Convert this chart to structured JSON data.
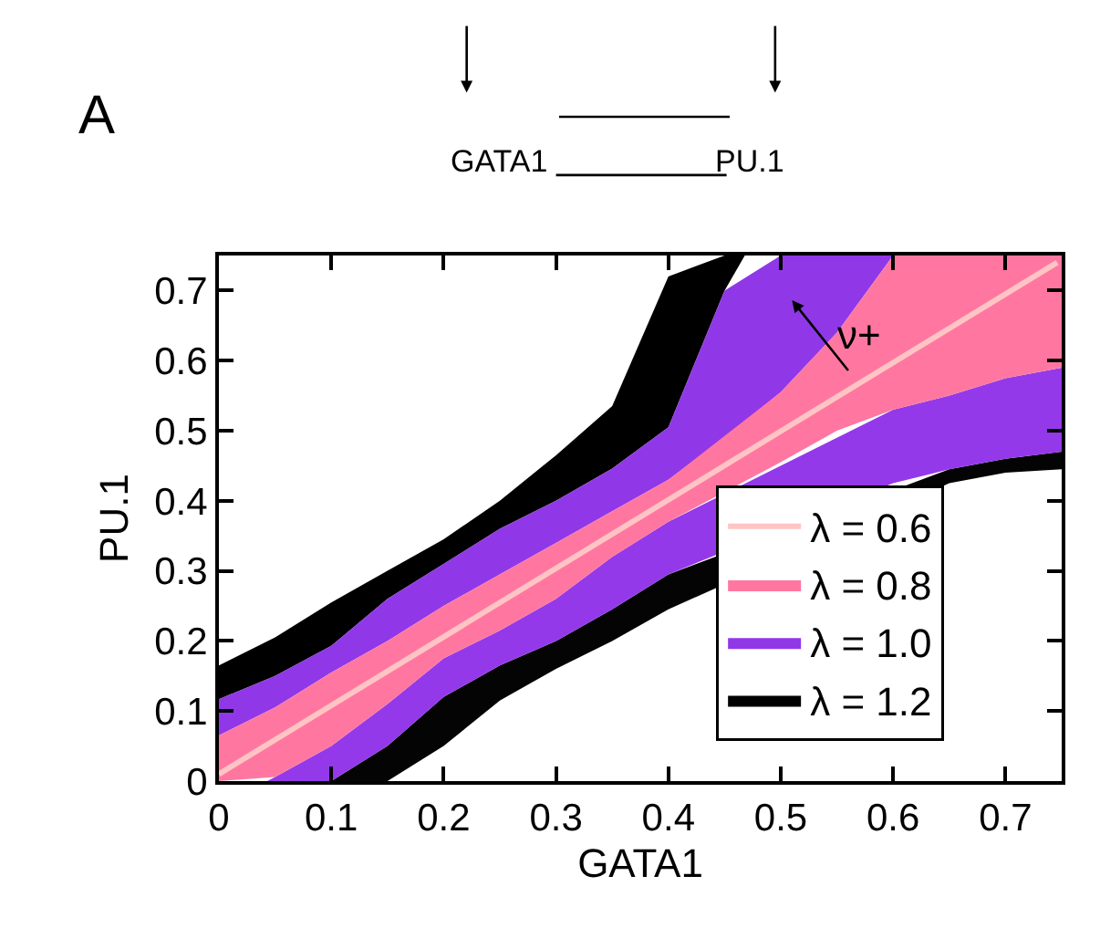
{
  "chart_data": {
    "type": "area",
    "xlabel": "GATA1",
    "ylabel": "PU.1",
    "xlim": [
      0,
      0.75
    ],
    "ylim": [
      0,
      0.75
    ],
    "xticks": [
      0,
      0.1,
      0.2,
      0.3,
      0.4,
      0.5,
      0.6,
      0.7
    ],
    "yticks": [
      0,
      0.1,
      0.2,
      0.3,
      0.4,
      0.5,
      0.6,
      0.7
    ],
    "legend": "bottom right",
    "series": [
      {
        "name": "λ = 1.2",
        "color": "#000000",
        "x": [
          0,
          0.05,
          0.1,
          0.15,
          0.2,
          0.25,
          0.3,
          0.35,
          0.4,
          0.45,
          0.468
        ],
        "values": [
          null,
          null,
          null,
          null,
          null,
          null,
          null,
          null,
          null,
          null,
          null
        ],
        "lower": [
          0.117,
          0.15,
          0.193,
          0.26,
          0.31,
          0.36,
          0.4,
          0.446,
          0.505,
          0.7,
          0.75
        ],
        "upper": [
          0.165,
          0.205,
          0.255,
          0.3,
          0.345,
          0.4,
          0.465,
          0.535,
          0.72,
          0.75,
          0.75
        ]
      },
      {
        "color": "#040404",
        "x": [
          0.1,
          0.15,
          0.2,
          0.25,
          0.3,
          0.35,
          0.4,
          0.65,
          0.7,
          0.75
        ],
        "values": [
          null,
          null,
          null,
          null,
          null,
          null,
          null,
          null,
          null,
          null
        ],
        "lower": [
          0,
          0,
          0.05,
          0.115,
          0.16,
          0.2,
          0.245,
          0.425,
          0.44,
          0.445
        ],
        "upper": [
          0,
          0.05,
          0.12,
          0.165,
          0.2,
          0.245,
          0.295,
          0.445,
          0.46,
          0.47
        ]
      },
      {
        "name": "λ = 1.0",
        "color": "#9038e8",
        "x": [
          0,
          0.05,
          0.1,
          0.15,
          0.2,
          0.25,
          0.3,
          0.35,
          0.4,
          0.45,
          0.5,
          0.55,
          0.6
        ],
        "values": [
          null,
          null,
          null,
          null,
          null,
          null,
          null,
          null,
          null,
          null,
          null,
          null,
          null
        ],
        "lower": [
          0.065,
          0.105,
          0.155,
          0.2,
          0.25,
          0.295,
          0.34,
          0.385,
          0.43,
          0.49,
          0.555,
          0.64,
          0.75
        ],
        "upper": [
          0.117,
          0.15,
          0.193,
          0.26,
          0.31,
          0.36,
          0.4,
          0.446,
          0.505,
          0.7,
          0.75,
          0.75,
          0.75
        ]
      },
      {
        "color": "#9439e9",
        "x": [
          0.043,
          0.05,
          0.1,
          0.15,
          0.2,
          0.25,
          0.3,
          0.35,
          0.4,
          0.6,
          0.65,
          0.7,
          0.75
        ],
        "values": [
          null,
          null,
          null,
          null,
          null,
          null,
          null,
          null,
          null,
          null,
          null,
          null,
          null
        ],
        "lower": [
          0,
          0,
          0,
          0.05,
          0.12,
          0.165,
          0.2,
          0.245,
          0.295,
          0.425,
          0.445,
          0.46,
          0.47
        ],
        "upper": [
          0,
          0.006,
          0.05,
          0.11,
          0.175,
          0.215,
          0.26,
          0.32,
          0.37,
          0.53,
          0.55,
          0.575,
          0.59
        ]
      },
      {
        "name": "λ = 0.8",
        "color": "#ff77a0",
        "x": [
          0,
          0.05,
          0.1,
          0.15,
          0.2,
          0.25,
          0.3,
          0.35,
          0.4,
          0.5,
          0.55,
          0.6,
          0.65,
          0.7,
          0.75
        ],
        "values": [
          null,
          null,
          null,
          null,
          null,
          null,
          null,
          null,
          null,
          null,
          null,
          null,
          null,
          null,
          null
        ],
        "lower": [
          0,
          0.006,
          0.05,
          0.11,
          0.175,
          0.215,
          0.26,
          0.32,
          0.37,
          0.455,
          0.5,
          0.53,
          0.55,
          0.575,
          0.59
        ],
        "upper": [
          0.065,
          0.105,
          0.155,
          0.2,
          0.25,
          0.295,
          0.34,
          0.385,
          0.43,
          0.555,
          0.64,
          0.75,
          0.75,
          0.75,
          0.75
        ]
      },
      {
        "name": "λ = 0.6",
        "color": "#ffc4c4",
        "type": "line",
        "x": [
          0,
          0.746
        ],
        "values": [
          0.01,
          0.74
        ]
      }
    ],
    "annotations": [
      "ν+",
      "A",
      "GATA1",
      "PU.1"
    ]
  }
}
